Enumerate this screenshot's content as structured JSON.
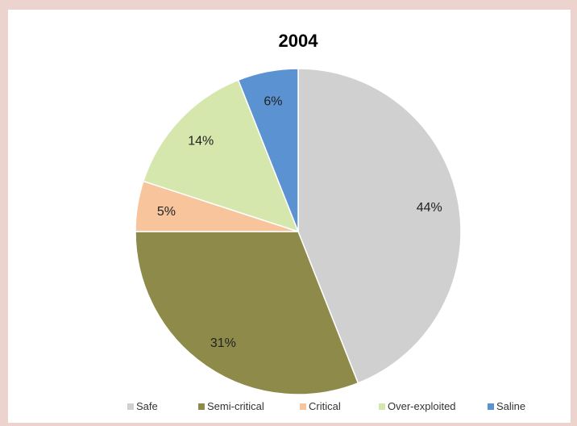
{
  "chart_data": {
    "type": "pie",
    "title": "2004",
    "categories": [
      "Safe",
      "Semi-critical",
      "Critical",
      "Over-exploited",
      "Saline"
    ],
    "values": [
      44,
      31,
      5,
      14,
      6
    ],
    "value_labels": [
      "44%",
      "31%",
      "5%",
      "14%",
      "6%"
    ],
    "colors": [
      "#d0d0d0",
      "#8e8a4a",
      "#f7c49c",
      "#d6e7ae",
      "#5a92d2"
    ],
    "start": "12 o'clock",
    "direction": "clockwise",
    "legend_position": "bottom"
  }
}
